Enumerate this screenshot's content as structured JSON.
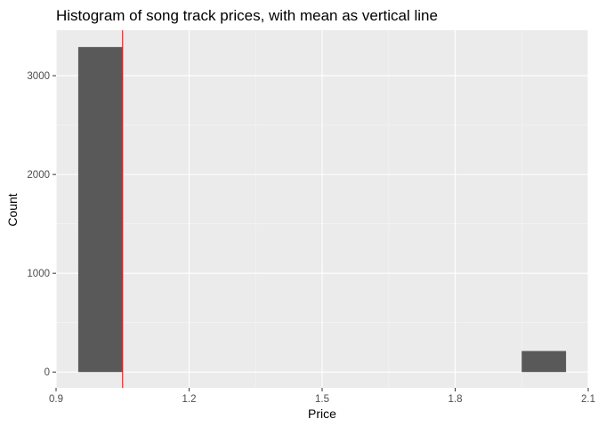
{
  "chart_data": {
    "type": "bar",
    "title": "Histogram of song track prices, with mean as vertical line",
    "xlabel": "Price",
    "ylabel": "Count",
    "xlim": [
      0.9,
      2.1
    ],
    "ylim": [
      -160,
      3460
    ],
    "x_ticks": [
      0.9,
      1.2,
      1.5,
      1.8,
      2.1
    ],
    "x_tick_labels": [
      "0.9",
      "1.2",
      "1.5",
      "1.8",
      "2.1"
    ],
    "y_ticks": [
      0,
      1000,
      2000,
      3000
    ],
    "y_tick_labels": [
      "0",
      "1000",
      "2000",
      "3000"
    ],
    "bins": [
      {
        "x0": 0.95,
        "x1": 1.05,
        "count": 3290
      },
      {
        "x0": 1.95,
        "x1": 2.05,
        "count": 213
      }
    ],
    "mean": 1.05,
    "grid": true,
    "colors": {
      "panel": "#ebebeb",
      "grid_major": "#ffffff",
      "grid_minor": "#f5f5f5",
      "bar": "#595959",
      "mean_line": "#e41a1c",
      "tick": "#333333"
    }
  }
}
